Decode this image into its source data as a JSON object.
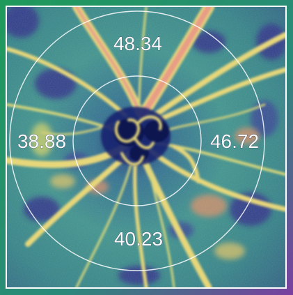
{
  "scan": {
    "type": "OCT angiography optic disc density map",
    "sectors": {
      "superior": "48.34",
      "nasal": "46.72",
      "inferior": "40.23",
      "temporal": "38.88"
    }
  },
  "colors": {
    "frame_gradient_start": "#1f9a5a",
    "frame_gradient_end": "#7a3fa0",
    "background": "#2b7d86",
    "low_density": "#2a2a8a",
    "mid_density": "#3fa8a0",
    "high_density": "#e8e36a",
    "peak_density": "#e07a7a",
    "ring": "#ffffff"
  }
}
